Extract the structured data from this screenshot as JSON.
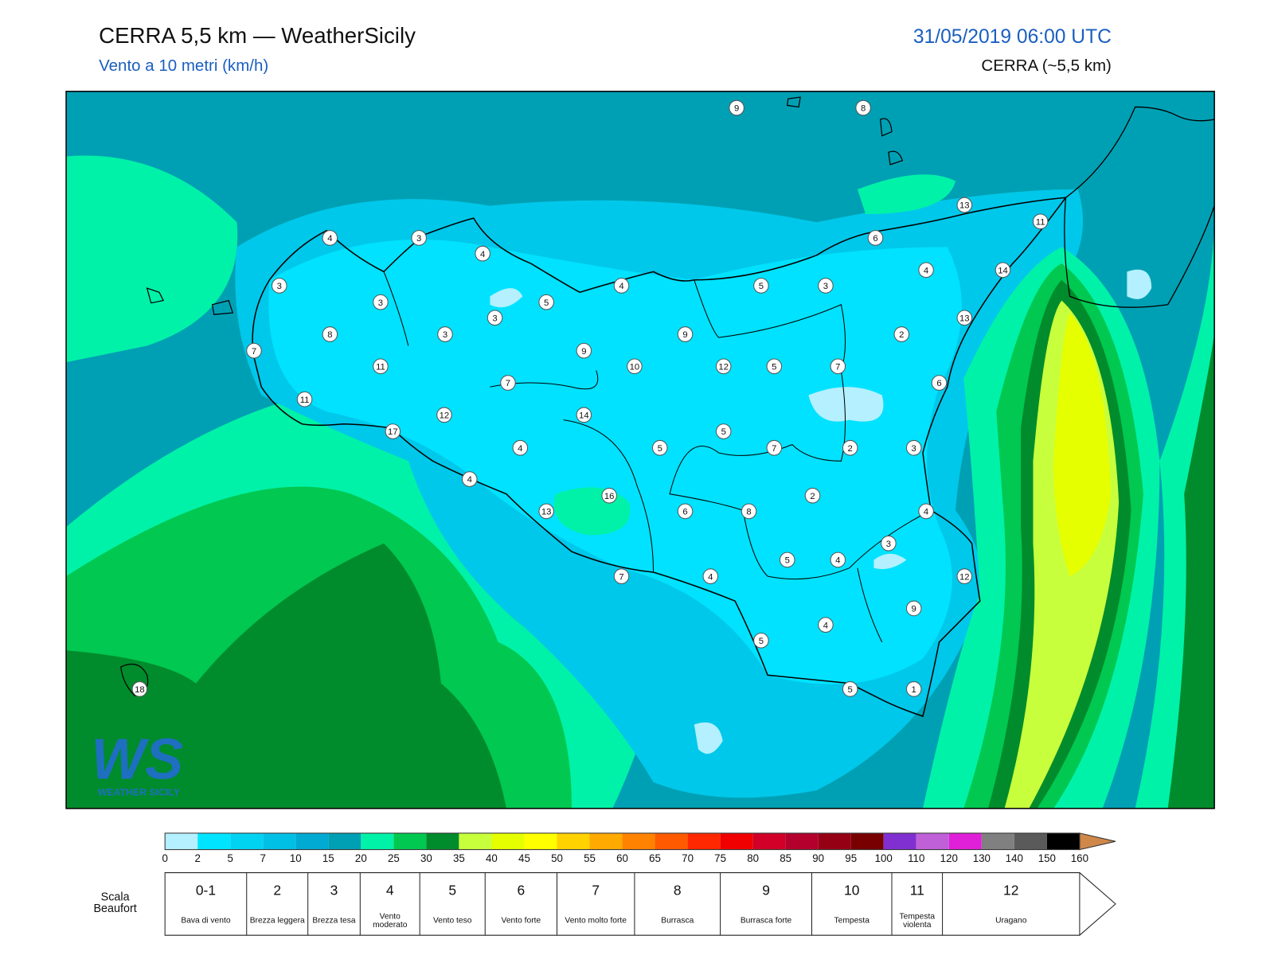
{
  "header": {
    "title": "CERRA 5,5 km — WeatherSicily",
    "subtitle": "Vento a 10 metri (km/h)",
    "date": "31/05/2019 06:00 UTC",
    "model": "CERRA (~5,5 km)"
  },
  "logo": {
    "text": "WS",
    "subtitle": "WEATHER SICILY"
  },
  "stations": {
    "values": [
      9,
      8,
      13,
      11,
      4,
      3,
      4,
      6,
      14,
      4,
      3,
      3,
      5,
      4,
      5,
      3,
      3,
      13,
      8,
      3,
      9,
      2,
      7,
      11,
      9,
      10,
      12,
      5,
      7,
      7,
      6,
      11,
      12,
      14,
      17,
      5,
      4,
      5,
      7,
      2,
      3,
      4,
      16,
      2,
      13,
      6,
      8,
      4,
      3,
      5,
      4,
      7,
      4,
      12,
      9,
      4,
      5,
      5,
      1,
      18
    ]
  },
  "legend": {
    "labels": [
      0,
      2,
      5,
      7,
      10,
      15,
      20,
      25,
      30,
      35,
      40,
      45,
      50,
      55,
      60,
      65,
      70,
      75,
      80,
      85,
      90,
      95,
      100,
      110,
      120,
      130,
      140,
      150,
      160
    ],
    "colors": [
      "#b4f0ff",
      "#00e4ff",
      "#00d2f2",
      "#00c0e6",
      "#00aad2",
      "#00a0b4",
      "#00f2a8",
      "#00c850",
      "#008c2c",
      "#c8ff3c",
      "#e6ff00",
      "#ffff00",
      "#ffd200",
      "#ffaa00",
      "#ff8200",
      "#ff5a00",
      "#ff2800",
      "#f00000",
      "#d20028",
      "#b4002d",
      "#960014",
      "#780000",
      "#8030d0",
      "#c060d8",
      "#e020d8",
      "#808080",
      "#5a5a5a",
      "#000000",
      "#8a4a28",
      "#d0884a"
    ]
  },
  "beaufort": {
    "label": "Scala Beaufort",
    "levels": [
      {
        "force": "0-1",
        "description": "Bava di vento"
      },
      {
        "force": "2",
        "description": "Brezza leggera"
      },
      {
        "force": "3",
        "description": "Brezza tesa"
      },
      {
        "force": "4",
        "description": "Vento moderato"
      },
      {
        "force": "5",
        "description": "Vento teso"
      },
      {
        "force": "6",
        "description": "Vento forte"
      },
      {
        "force": "7",
        "description": "Vento molto forte"
      },
      {
        "force": "8",
        "description": "Burrasca"
      },
      {
        "force": "9",
        "description": "Burrasca forte"
      },
      {
        "force": "10",
        "description": "Tempesta"
      },
      {
        "force": "11",
        "description": "Tempesta violenta"
      },
      {
        "force": "12",
        "description": "Uragano"
      }
    ]
  }
}
